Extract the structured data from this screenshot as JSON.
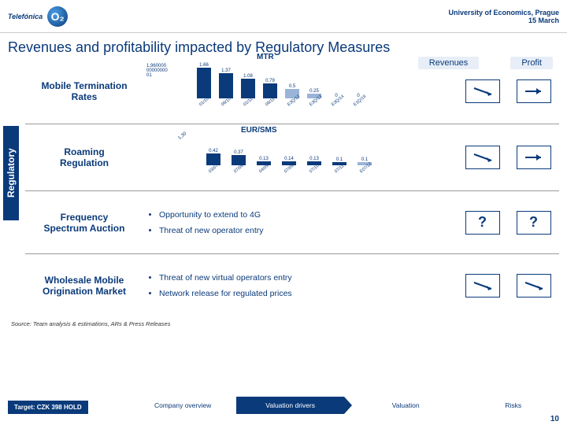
{
  "header": {
    "telefonica": "Telefónica",
    "o2": "O₂",
    "university": "University of Economics, Prague",
    "date": "15 March"
  },
  "title": "Revenues and profitability impacted by Regulatory Measures",
  "legend": {
    "rev": "Revenues",
    "profit": "Profit"
  },
  "sidebar": "Regulatory",
  "rows": [
    {
      "label": "Mobile Termination\nRates"
    },
    {
      "label": "Roaming\nRegulation"
    },
    {
      "label": "Frequency\nSpectrum Auction",
      "bullets": [
        "Opportunity to extend to 4G",
        "Threat of new operator entry"
      ]
    },
    {
      "label": "Wholesale Mobile\nOrigination Market",
      "bullets": [
        "Threat of new virtual operators entry",
        "Network release for regulated prices"
      ]
    }
  ],
  "mtr": {
    "title": "MTR",
    "ymax_label": "1,960000\n00000000\n01",
    "bars": [
      {
        "lbl": "01/10",
        "v": 1.66,
        "est": false
      },
      {
        "lbl": "08/10",
        "v": 1.37,
        "est": false
      },
      {
        "lbl": "01/11",
        "v": 1.08,
        "est": false
      },
      {
        "lbl": "08/11",
        "v": 0.79,
        "est": false
      },
      {
        "lbl": "E3Q/12",
        "v": 0.5,
        "est": true
      },
      {
        "lbl": "E3Q/13",
        "v": 0.25,
        "est": true
      },
      {
        "lbl": "E3Q/14",
        "v": 0,
        "est": true
      },
      {
        "lbl": "E1Q/16",
        "v": 0,
        "est": true
      }
    ],
    "bar_color": "#0a3a7a",
    "bar_est_color": "#9ab4d8",
    "ylim": [
      0,
      1.96
    ]
  },
  "sms": {
    "title": "EUR/SMS",
    "ymax": "1,30",
    "bars": [
      {
        "lbl": "03/07",
        "v": 0.42,
        "est": false
      },
      {
        "lbl": "07/08",
        "v": 0.37,
        "est": false
      },
      {
        "lbl": "04/09",
        "v": 0.13,
        "est": false
      },
      {
        "lbl": "07/09",
        "v": 0.14,
        "est": false
      },
      {
        "lbl": "07/10",
        "v": 0.13,
        "est": false
      },
      {
        "lbl": "07/11",
        "v": 0.1,
        "est": false
      },
      {
        "lbl": "E07/12",
        "v": 0.1,
        "est": true
      }
    ],
    "bar_color": "#0a3a7a",
    "ylim": [
      0,
      1.3
    ]
  },
  "arrows": {
    "down": "↓→",
    "q": "?"
  },
  "source": "Source: Team analysis & estimations, ARs & Press Releases",
  "footer": {
    "target": "Target: CZK 398 HOLD",
    "s1": "Company overview",
    "s2": "Valuation drivers",
    "s3": "Valuation",
    "s4": "Risks"
  },
  "page": "10"
}
